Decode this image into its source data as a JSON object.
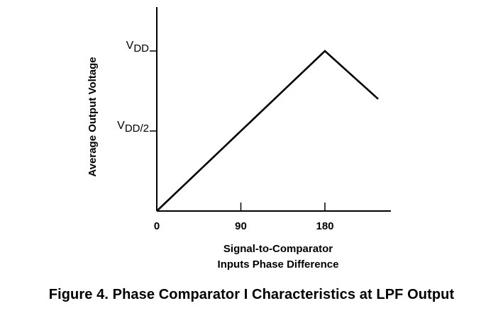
{
  "chart_data": {
    "type": "line",
    "title": "Figure 4.  Phase Comparator I Characteristics at LPF Output",
    "xlabel_line1": "Signal-to-Comparator",
    "xlabel_line2": "Inputs Phase Difference",
    "ylabel": "Average Output Voltage",
    "x_ticks": [
      {
        "value": 0,
        "label": "0"
      },
      {
        "value": 90,
        "label": "90"
      },
      {
        "value": 180,
        "label": "180"
      }
    ],
    "y_ticks": [
      {
        "value": 0.5,
        "label_main": "V",
        "label_sub": "DD/2"
      },
      {
        "value": 1.0,
        "label_main": "V",
        "label_sub": "DD"
      }
    ],
    "xlim": [
      0,
      252
    ],
    "ylim": [
      0,
      1.3
    ],
    "series": [
      {
        "x": [
          0,
          180,
          237
        ],
        "y": [
          0,
          1.0,
          0.7
        ]
      }
    ],
    "grid": false
  },
  "colors": {
    "line": "#000000",
    "axis": "#000000"
  }
}
